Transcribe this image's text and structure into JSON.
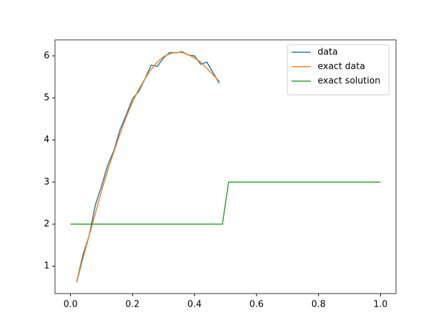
{
  "chart_data": {
    "type": "line",
    "legend": "upper right",
    "xlim": [
      -0.05,
      1.05
    ],
    "ylim": [
      0.35,
      6.38
    ],
    "xticks": [
      {
        "value": 0,
        "label": "0.0"
      },
      0.2,
      0.4,
      0.6,
      0.8,
      {
        "value": 1,
        "label": "1.0"
      }
    ],
    "yticks": [
      1,
      2,
      3,
      4,
      5,
      6
    ],
    "series": [
      {
        "name": "data",
        "color": "#1f77b4",
        "x": [
          0.02,
          0.04,
          0.06,
          0.08,
          0.1,
          0.12,
          0.14,
          0.16,
          0.18,
          0.2,
          0.22,
          0.24,
          0.26,
          0.28,
          0.3,
          0.32,
          0.34,
          0.36,
          0.38,
          0.4,
          0.42,
          0.44,
          0.46,
          0.48
        ],
        "values": [
          0.62,
          1.27,
          1.72,
          2.45,
          2.9,
          3.4,
          3.75,
          4.25,
          4.6,
          4.98,
          5.15,
          5.45,
          5.78,
          5.75,
          5.95,
          6.08,
          6.07,
          6.1,
          6.02,
          6.0,
          5.8,
          5.85,
          5.6,
          5.35
        ]
      },
      {
        "name": "exact data",
        "color": "#ff7f0e",
        "x": [
          0.02,
          0.04,
          0.06,
          0.08,
          0.1,
          0.12,
          0.14,
          0.16,
          0.18,
          0.2,
          0.22,
          0.24,
          0.26,
          0.28,
          0.3,
          0.32,
          0.34,
          0.36,
          0.38,
          0.4,
          0.42,
          0.44,
          0.46,
          0.48
        ],
        "values": [
          0.62,
          1.18,
          1.72,
          2.25,
          2.78,
          3.28,
          3.72,
          4.15,
          4.55,
          4.9,
          5.2,
          5.45,
          5.68,
          5.85,
          5.98,
          6.05,
          6.08,
          6.08,
          6.03,
          5.95,
          5.85,
          5.7,
          5.55,
          5.4
        ]
      },
      {
        "name": "exact solution",
        "color": "#2ca02c",
        "x": [
          0,
          0.49,
          0.51,
          1.0
        ],
        "values": [
          2,
          2,
          3,
          3
        ]
      }
    ]
  }
}
